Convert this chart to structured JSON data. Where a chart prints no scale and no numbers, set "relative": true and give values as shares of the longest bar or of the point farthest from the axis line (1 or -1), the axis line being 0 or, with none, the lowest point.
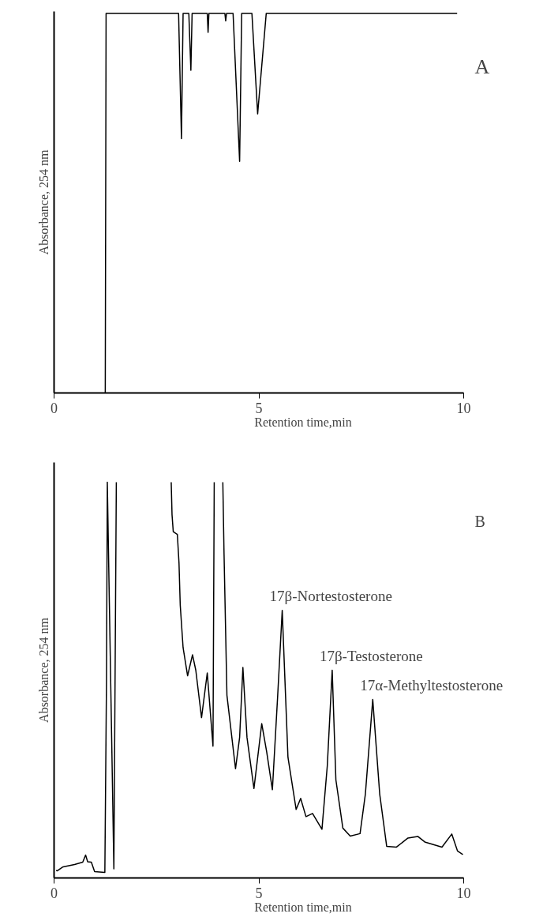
{
  "chart_data": [
    {
      "type": "line",
      "title": "A",
      "xlabel": "Retention time,min",
      "ylabel": "Absorbance, 254 nm",
      "relative": true,
      "xlim": [
        0,
        10
      ],
      "xticks": [
        0,
        5,
        10
      ],
      "color": "#000000",
      "x": [
        1.25,
        1.27,
        3.04,
        3.11,
        3.15,
        3.29,
        3.34,
        3.37,
        3.74,
        3.76,
        3.78,
        4.17,
        4.19,
        4.21,
        4.37,
        4.53,
        4.58,
        4.83,
        4.97,
        5.18,
        9.84
      ],
      "values": [
        0,
        1,
        1,
        0.67,
        1,
        1,
        0.85,
        1,
        1,
        0.95,
        1,
        1,
        0.98,
        1,
        1,
        0.61,
        1,
        1,
        0.735,
        1,
        1
      ]
    },
    {
      "type": "line",
      "title": "B",
      "xlabel": "Retention time,min",
      "ylabel": "Absorbance, 254 nm",
      "relative": true,
      "xlim": [
        0,
        10
      ],
      "xticks": [
        0,
        5,
        10
      ],
      "color": "#000000",
      "x": [
        0.05,
        0.08,
        0.22,
        0.5,
        0.7,
        0.77,
        0.82,
        0.91,
        0.99,
        1.24,
        1.28,
        1.3,
        1.46,
        1.52,
        1.53,
        2.86,
        2.88,
        2.91,
        3.01,
        3.05,
        3.08,
        3.15,
        3.26,
        3.38,
        3.46,
        3.6,
        3.74,
        3.88,
        3.91,
        3.95,
        4.12,
        4.15,
        4.22,
        4.43,
        4.53,
        4.61,
        4.71,
        4.88,
        5.07,
        5.19,
        5.33,
        5.46,
        5.57,
        5.71,
        5.91,
        6.02,
        6.15,
        6.31,
        6.54,
        6.67,
        6.79,
        6.88,
        7.05,
        7.23,
        7.47,
        7.6,
        7.78,
        7.95,
        8.12,
        8.36,
        8.64,
        8.88,
        9.05,
        9.47,
        9.71,
        9.85,
        9.98
      ],
      "values": [
        0.019,
        0.018,
        0.028,
        0.034,
        0.04,
        0.058,
        0.041,
        0.04,
        0.016,
        0.014,
        0.5,
        1,
        0.023,
        1,
        null,
        1,
        0.918,
        0.875,
        0.868,
        0.796,
        0.69,
        0.582,
        0.511,
        0.564,
        0.525,
        0.405,
        0.518,
        0.333,
        1,
        null,
        1,
        0.818,
        0.462,
        0.276,
        0.355,
        0.532,
        0.355,
        0.226,
        0.39,
        0.319,
        0.223,
        0.462,
        0.676,
        0.305,
        0.173,
        0.201,
        0.155,
        0.163,
        0.123,
        0.283,
        0.525,
        0.248,
        0.126,
        0.106,
        0.112,
        0.212,
        0.451,
        0.212,
        0.08,
        0.078,
        0.101,
        0.105,
        0.091,
        0.078,
        0.111,
        0.068,
        0.059
      ],
      "annotations": [
        {
          "text": "17β-Nortestosterone",
          "x": 5.57,
          "y": 0.676
        },
        {
          "text": "17β-Testosterone",
          "x": 6.79,
          "y": 0.525
        },
        {
          "text": "17α-Methyltestosterone",
          "x": 7.78,
          "y": 0.451
        }
      ]
    }
  ]
}
